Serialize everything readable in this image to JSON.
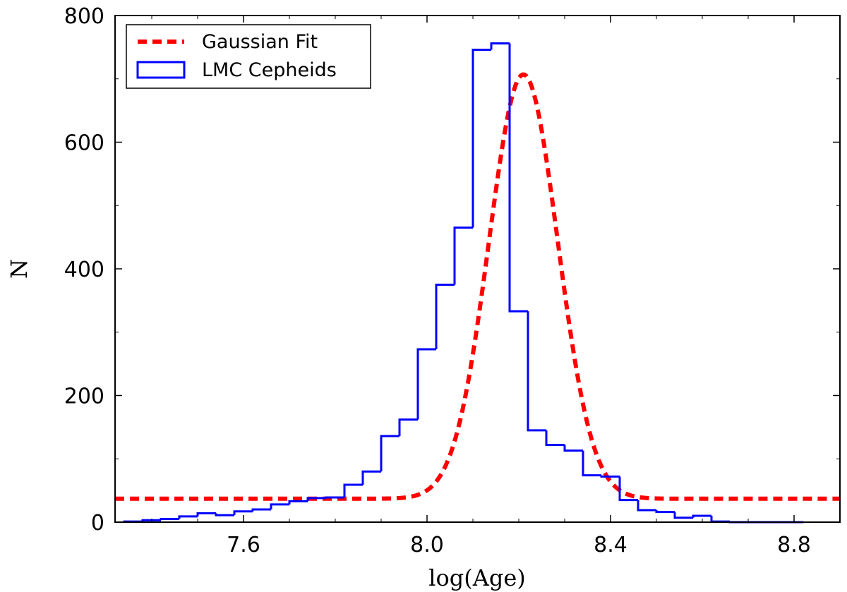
{
  "chart_data": {
    "type": "histogram",
    "xlabel": "log(Age)",
    "ylabel": "N",
    "xlim": [
      7.32,
      8.9
    ],
    "ylim": [
      0,
      800
    ],
    "xticks": [
      7.6,
      8.0,
      8.4,
      8.8
    ],
    "xtick_labels": [
      "7.6",
      "8.0",
      "8.4",
      "8.8"
    ],
    "yticks": [
      0,
      200,
      400,
      600,
      800
    ],
    "ytick_labels": [
      "0",
      "200",
      "400",
      "600",
      "800"
    ],
    "legend": {
      "placement": "top-left",
      "entries": [
        {
          "label": "Gaussian Fit",
          "style": "dashed",
          "color": "#ff0000"
        },
        {
          "label": "LMC Cepheids",
          "style": "step",
          "color": "#0000ff"
        }
      ]
    },
    "series": [
      {
        "name": "LMC Cepheids",
        "type": "step-histogram",
        "color": "#0000ff",
        "bin_edges": [
          7.34,
          7.38,
          7.42,
          7.46,
          7.5,
          7.54,
          7.58,
          7.62,
          7.66,
          7.7,
          7.74,
          7.78,
          7.82,
          7.86,
          7.9,
          7.94,
          7.98,
          8.02,
          8.06,
          8.1,
          8.14,
          8.18,
          8.22,
          8.26,
          8.3,
          8.34,
          8.38,
          8.42,
          8.46,
          8.5,
          8.54,
          8.58,
          8.62,
          8.66,
          8.7,
          8.74,
          8.78,
          8.82
        ],
        "counts": [
          1,
          3,
          5,
          9,
          14,
          11,
          17,
          20,
          28,
          33,
          38,
          39,
          59,
          80,
          136,
          162,
          273,
          375,
          465,
          746,
          756,
          333,
          145,
          122,
          113,
          74,
          72,
          35,
          19,
          16,
          7,
          10,
          1,
          0,
          0,
          0,
          0
        ]
      },
      {
        "name": "Gaussian Fit",
        "type": "gaussian",
        "color": "#ff0000",
        "baseline": 37,
        "amplitude": 670,
        "mean": 8.21,
        "sigma": 0.075
      }
    ]
  }
}
